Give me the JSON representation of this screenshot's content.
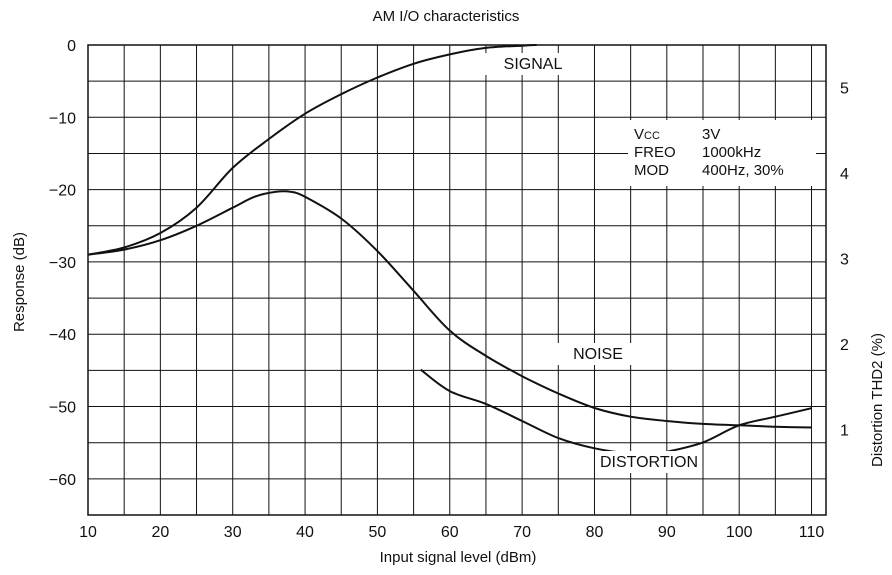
{
  "chart_data": {
    "type": "line",
    "title": "AM I/O characteristics",
    "xlabel": "Input signal level (dBm)",
    "ylabel": "Response (dB)",
    "y2label": "Distortion THD2 (%)",
    "xlim": [
      10,
      112
    ],
    "ylim": [
      -65,
      0
    ],
    "y2lim": [
      0,
      5.5
    ],
    "x_ticks": [
      10,
      20,
      30,
      40,
      50,
      60,
      70,
      80,
      90,
      100,
      110
    ],
    "y_ticks": [
      0,
      -10,
      -20,
      -30,
      -40,
      -50,
      -60
    ],
    "y_tick_labels": [
      "0",
      "−10",
      "−20",
      "−30",
      "−40",
      "−50",
      "−60"
    ],
    "y2_ticks": [
      1,
      2,
      3,
      4,
      5
    ],
    "grid": true,
    "conditions": [
      {
        "label": "VCC",
        "value": "3V"
      },
      {
        "label": "FREO",
        "value": "1000kHz"
      },
      {
        "label": "MOD",
        "value": "400Hz, 30%"
      }
    ],
    "series": [
      {
        "name": "SIGNAL",
        "axis": "left",
        "x": [
          10,
          15,
          20,
          25,
          30,
          35,
          40,
          45,
          50,
          55,
          60,
          65,
          70,
          72
        ],
        "y": [
          -29,
          -28,
          -26,
          -22.5,
          -17,
          -13,
          -9.5,
          -6.8,
          -4.5,
          -2.6,
          -1.3,
          -0.4,
          -0.1,
          0
        ]
      },
      {
        "name": "NOISE",
        "axis": "left",
        "x": [
          10,
          15,
          20,
          25,
          30,
          33,
          36,
          38,
          40,
          45,
          50,
          55,
          60,
          65,
          70,
          75,
          80,
          85,
          90,
          95,
          100,
          105,
          110
        ],
        "y": [
          -29,
          -28.3,
          -27,
          -25,
          -22.5,
          -21,
          -20.3,
          -20.3,
          -21,
          -24,
          -28.5,
          -34,
          -39.5,
          -43,
          -45.8,
          -48.2,
          -50.2,
          -51.4,
          -52,
          -52.4,
          -52.6,
          -52.8,
          -52.9
        ]
      },
      {
        "name": "DISTORTION",
        "axis": "right",
        "x": [
          56,
          60,
          65,
          70,
          75,
          80,
          85,
          88,
          90,
          95,
          100,
          105,
          110
        ],
        "y": [
          1.7,
          1.45,
          1.3,
          1.1,
          0.9,
          0.78,
          0.72,
          0.72,
          0.74,
          0.85,
          1.05,
          1.15,
          1.25
        ]
      }
    ]
  }
}
